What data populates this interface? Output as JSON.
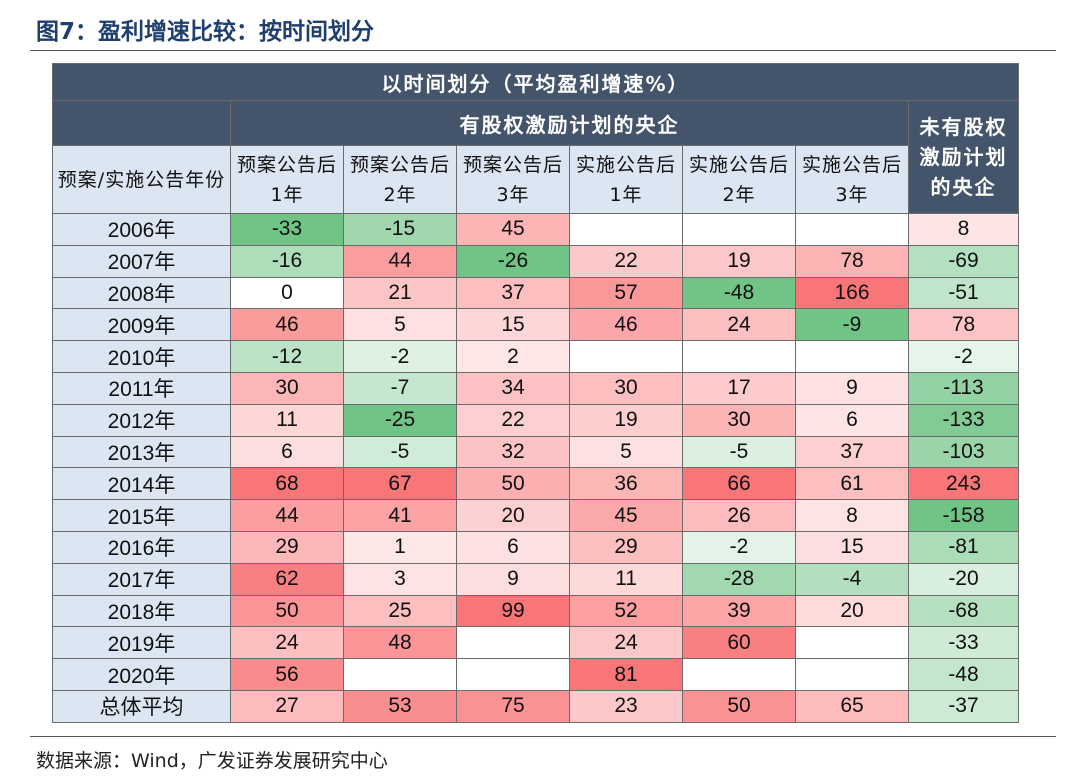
{
  "title": "图7：盈利增速比较：按时间划分",
  "table": {
    "caption": "以时间划分（平均盈利增速%）",
    "group_header": "有股权激励计划的央企",
    "other_header": "未有股权激励计划的央企",
    "row_header": "预案/实施公告年份",
    "columns": [
      "预案公告后1年",
      "预案公告后2年",
      "预案公告后3年",
      "实施公告后1年",
      "实施公告后2年",
      "实施公告后3年"
    ],
    "rows": [
      {
        "label": "2006年",
        "values": [
          -33,
          -15,
          45,
          null,
          null,
          null,
          8
        ]
      },
      {
        "label": "2007年",
        "values": [
          -16,
          44,
          -26,
          22,
          19,
          78,
          -69
        ]
      },
      {
        "label": "2008年",
        "values": [
          0,
          21,
          37,
          57,
          -48,
          166,
          -51
        ]
      },
      {
        "label": "2009年",
        "values": [
          46,
          5,
          15,
          46,
          24,
          -9,
          78
        ]
      },
      {
        "label": "2010年",
        "values": [
          -12,
          -2,
          2,
          null,
          null,
          null,
          -2
        ]
      },
      {
        "label": "2011年",
        "values": [
          30,
          -7,
          34,
          30,
          17,
          9,
          -113
        ]
      },
      {
        "label": "2012年",
        "values": [
          11,
          -25,
          22,
          19,
          30,
          6,
          -133
        ]
      },
      {
        "label": "2013年",
        "values": [
          6,
          -5,
          32,
          5,
          -5,
          37,
          -103
        ]
      },
      {
        "label": "2014年",
        "values": [
          68,
          67,
          50,
          36,
          66,
          61,
          243
        ]
      },
      {
        "label": "2015年",
        "values": [
          44,
          41,
          20,
          45,
          26,
          8,
          -158
        ]
      },
      {
        "label": "2016年",
        "values": [
          29,
          1,
          6,
          29,
          -2,
          15,
          -81
        ]
      },
      {
        "label": "2017年",
        "values": [
          62,
          3,
          9,
          11,
          -28,
          -4,
          -20
        ]
      },
      {
        "label": "2018年",
        "values": [
          50,
          25,
          99,
          52,
          39,
          20,
          -68
        ]
      },
      {
        "label": "2019年",
        "values": [
          24,
          48,
          null,
          24,
          60,
          null,
          -33
        ]
      },
      {
        "label": "2020年",
        "values": [
          56,
          null,
          null,
          81,
          null,
          null,
          -48
        ]
      },
      {
        "label": "总体平均",
        "values": [
          27,
          53,
          75,
          23,
          50,
          65,
          -37
        ]
      }
    ]
  },
  "source": "数据来源：Wind，广发证券发展研究中心"
}
